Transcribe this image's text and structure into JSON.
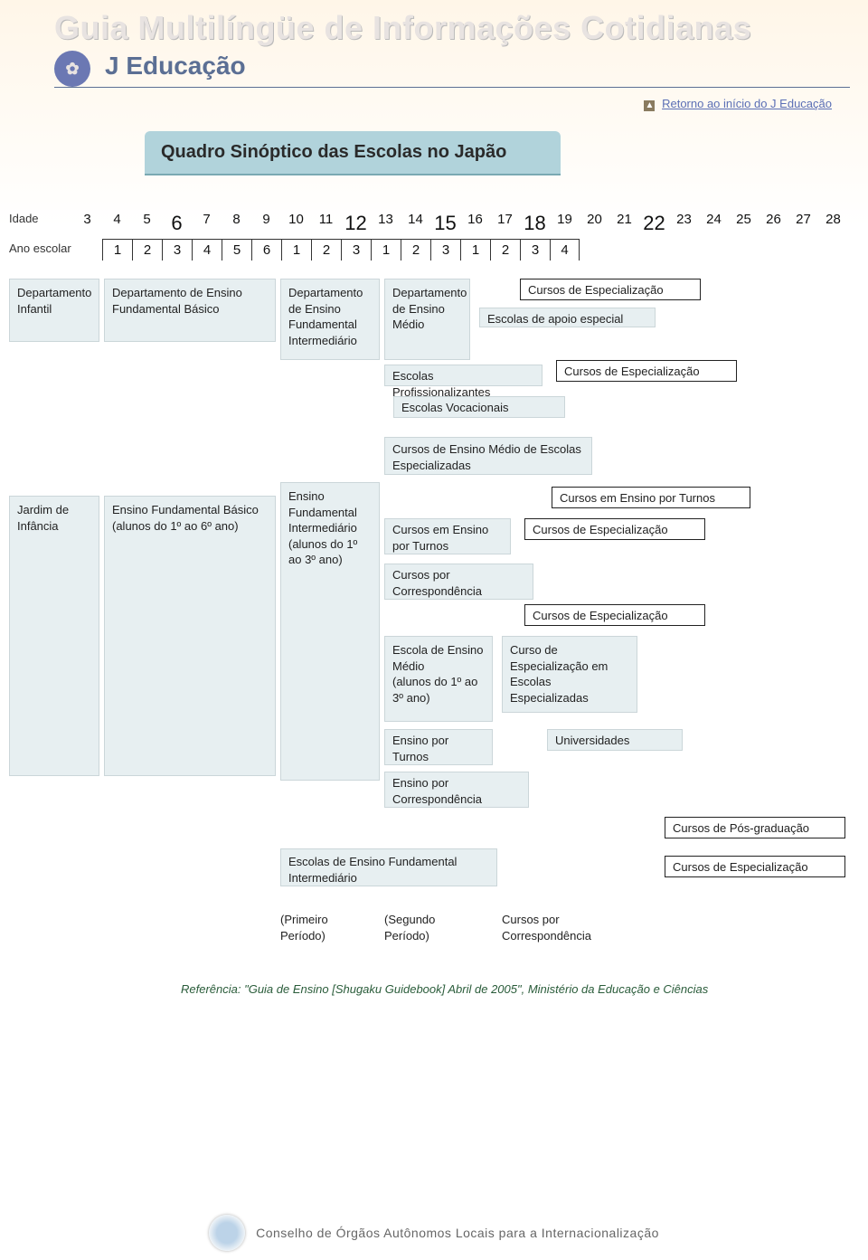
{
  "header": {
    "main_title": "Guia Multilíngüe de Informações Cotidianas",
    "sub_title": "J Educação",
    "logo_glyph": "✿"
  },
  "return_link": "Retorno ao início do J Educação",
  "chart_title": "Quadro Sinóptico das Escolas no Japão",
  "timeline": {
    "label_age": "Idade",
    "label_year": "Ano escolar",
    "ages": [
      "3",
      "4",
      "5",
      "6",
      "7",
      "8",
      "9",
      "10",
      "11",
      "12",
      "13",
      "14",
      "15",
      "16",
      "17",
      "18",
      "19",
      "20",
      "21",
      "22",
      "23",
      "24",
      "25",
      "26",
      "27",
      "28"
    ],
    "big_ages_idx": [
      3,
      9,
      12,
      15,
      19
    ],
    "years": [
      "1",
      "2",
      "3",
      "4",
      "5",
      "6",
      "1",
      "2",
      "3",
      "1",
      "2",
      "3",
      "1",
      "2",
      "3",
      "4"
    ]
  },
  "boxes": {
    "dep_infantil": "Departamento Infantil",
    "dep_fund_basico": "Departamento de Ensino Fundamental Básico",
    "dep_fund_interm": "Departamento de Ensino Fundamental Intermediário",
    "dep_medio": "Departamento de Ensino Médio",
    "cursos_espec_1": "Cursos de Especialização",
    "escolas_apoio": "Escolas de apoio especial",
    "escolas_profiss": "Escolas Profissionalizantes",
    "cursos_espec_2": "Cursos de Especialização",
    "escolas_vocac": "Escolas Vocacionais",
    "cursos_medio_espec": "Cursos de Ensino Médio de Escolas Especializadas",
    "jardim": "Jardim de Infância",
    "fund_basico_alunos": "Ensino Fundamental Básico\n(alunos do 1º ao 6º ano)",
    "fund_interm_alunos": "Ensino Fundamental Intermediário\n(alunos do 1º ao 3º ano)",
    "cursos_em_turnos_top": "Cursos em Ensino por Turnos",
    "cursos_ensino_turnos": "Cursos em Ensino por Turnos",
    "cursos_espec_3": "Cursos de Especialização",
    "cursos_corresp": "Cursos por Correspondência",
    "cursos_espec_4": "Cursos de Especialização",
    "escola_medio_alunos": "Escola de Ensino Médio\n(alunos do 1º ao 3º ano)",
    "curso_espec_escolas": "Curso de Especialização em Escolas Especializadas",
    "ensino_turnos": "Ensino por Turnos",
    "universidades": "Universidades",
    "ensino_corresp": "Ensino por Correspondência",
    "pos_grad": "Cursos de Pós-graduação",
    "escolas_fund_interm": "Escolas de Ensino Fundamental Intermediário",
    "cursos_espec_5": "Cursos de Especialização",
    "primeiro_periodo": "(Primeiro Período)",
    "segundo_periodo": "(Segundo Período)",
    "cursos_corresp2": "Cursos por Correspondência"
  },
  "reference": "Referência: \"Guia de Ensino [Shugaku Guidebook] Abril de 2005\", Ministério da Educação e Ciências",
  "footer_text": "Conselho de Órgãos Autônomos Locais para a Internacionalização",
  "colors": {
    "box_bg": "#e7eff1",
    "box_border": "#cbd6d9",
    "title_bg": "#b1d3db",
    "link": "#5a6fb5",
    "subtitle": "#5b6f94"
  }
}
